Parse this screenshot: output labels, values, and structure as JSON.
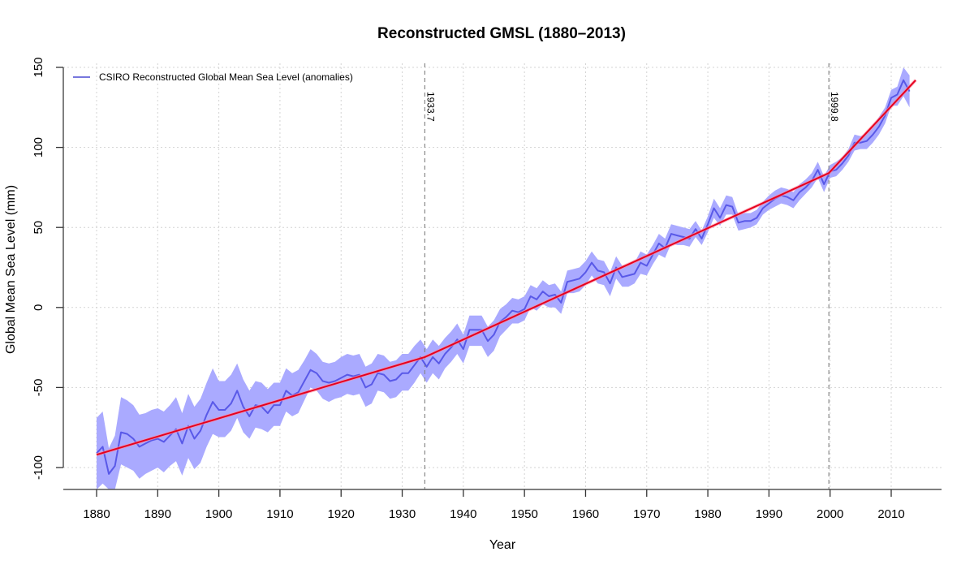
{
  "chart_data": {
    "type": "line",
    "title": "Reconstructed GMSL (1880–2013)",
    "xlabel": "Year",
    "ylabel": "Global Mean Sea Level (mm)",
    "xlim": [
      1874,
      2018
    ],
    "ylim": [
      -114,
      150
    ],
    "x_ticks": [
      1880,
      1890,
      1900,
      1910,
      1920,
      1930,
      1940,
      1950,
      1960,
      1970,
      1980,
      1990,
      2000,
      2010
    ],
    "y_ticks": [
      -100,
      -50,
      0,
      50,
      100,
      150
    ],
    "grid": true,
    "legend": {
      "position": "top-left",
      "entries": [
        "CSIRO Reconstructed Global Mean Sea Level (anomalies)"
      ]
    },
    "colors": {
      "series": "#5050e6",
      "band": "#aaaaff",
      "fit": "#e6001e",
      "vline": "#999999"
    },
    "series": [
      {
        "name": "CSIRO Reconstructed Global Mean Sea Level (anomalies)",
        "x": [
          1880,
          1881,
          1882,
          1883,
          1884,
          1885,
          1886,
          1887,
          1888,
          1889,
          1890,
          1891,
          1892,
          1893,
          1894,
          1895,
          1896,
          1897,
          1898,
          1899,
          1900,
          1901,
          1902,
          1903,
          1904,
          1905,
          1906,
          1907,
          1908,
          1909,
          1910,
          1911,
          1912,
          1913,
          1914,
          1915,
          1916,
          1917,
          1918,
          1919,
          1920,
          1921,
          1922,
          1923,
          1924,
          1925,
          1926,
          1927,
          1928,
          1929,
          1930,
          1931,
          1932,
          1933,
          1934,
          1935,
          1936,
          1937,
          1938,
          1939,
          1940,
          1941,
          1942,
          1943,
          1944,
          1945,
          1946,
          1947,
          1948,
          1949,
          1950,
          1951,
          1952,
          1953,
          1954,
          1955,
          1956,
          1957,
          1958,
          1959,
          1960,
          1961,
          1962,
          1963,
          1964,
          1965,
          1966,
          1967,
          1968,
          1969,
          1970,
          1971,
          1972,
          1973,
          1974,
          1975,
          1976,
          1977,
          1978,
          1979,
          1980,
          1981,
          1982,
          1983,
          1984,
          1985,
          1986,
          1987,
          1988,
          1989,
          1990,
          1991,
          1992,
          1993,
          1994,
          1995,
          1996,
          1997,
          1998,
          1999,
          2000,
          2001,
          2002,
          2003,
          2004,
          2005,
          2006,
          2007,
          2008,
          2009,
          2010,
          2011,
          2012,
          2013
        ],
        "y": [
          -91,
          -87,
          -104,
          -99,
          -78,
          -79,
          -82,
          -87,
          -85,
          -83,
          -82,
          -84,
          -80,
          -76,
          -85,
          -74,
          -82,
          -77,
          -67,
          -59,
          -64,
          -64,
          -60,
          -52,
          -62,
          -68,
          -61,
          -62,
          -66,
          -61,
          -61,
          -52,
          -55,
          -53,
          -46,
          -39,
          -41,
          -46,
          -47,
          -46,
          -44,
          -42,
          -43,
          -42,
          -50,
          -48,
          -41,
          -42,
          -46,
          -45,
          -41,
          -41,
          -36,
          -31,
          -37,
          -31,
          -35,
          -29,
          -25,
          -20,
          -26,
          -14,
          -14,
          -14,
          -21,
          -17,
          -9,
          -6,
          -2,
          -3,
          -1,
          7,
          5,
          10,
          7,
          8,
          3,
          16,
          17,
          18,
          22,
          28,
          23,
          22,
          15,
          25,
          19,
          20,
          21,
          28,
          26,
          33,
          40,
          37,
          46,
          45,
          44,
          43,
          49,
          43,
          52,
          62,
          56,
          64,
          63,
          53,
          54,
          54,
          56,
          62,
          65,
          68,
          70,
          69,
          67,
          72,
          75,
          79,
          86,
          77,
          85,
          86,
          90,
          95,
          103,
          103,
          104,
          108,
          113,
          120,
          131,
          133,
          142,
          135
        ]
      },
      {
        "name": "Uncertainty band",
        "lower": [
          -115,
          -110,
          -120,
          -115,
          -98,
          -100,
          -102,
          -107,
          -104,
          -102,
          -100,
          -103,
          -99,
          -96,
          -105,
          -94,
          -101,
          -97,
          -87,
          -79,
          -81,
          -81,
          -77,
          -69,
          -78,
          -82,
          -75,
          -76,
          -78,
          -74,
          -74,
          -65,
          -68,
          -66,
          -58,
          -50,
          -52,
          -57,
          -59,
          -57,
          -56,
          -54,
          -55,
          -54,
          -62,
          -60,
          -52,
          -53,
          -57,
          -56,
          -52,
          -52,
          -47,
          -41,
          -47,
          -41,
          -45,
          -38,
          -34,
          -29,
          -35,
          -24,
          -24,
          -24,
          -31,
          -27,
          -18,
          -14,
          -10,
          -10,
          -8,
          0,
          -2,
          2,
          0,
          0,
          -4,
          9,
          9,
          10,
          14,
          20,
          15,
          14,
          7,
          18,
          13,
          13,
          15,
          21,
          20,
          27,
          33,
          31,
          40,
          39,
          39,
          38,
          44,
          39,
          47,
          56,
          51,
          58,
          58,
          48,
          49,
          50,
          52,
          58,
          61,
          63,
          65,
          64,
          62,
          67,
          71,
          75,
          81,
          72,
          81,
          82,
          86,
          91,
          98,
          99,
          99,
          103,
          108,
          115,
          126,
          126,
          132,
          125
        ],
        "upper": [
          -69,
          -65,
          -88,
          -80,
          -56,
          -58,
          -61,
          -67,
          -66,
          -64,
          -63,
          -65,
          -61,
          -56,
          -66,
          -54,
          -62,
          -57,
          -47,
          -38,
          -46,
          -46,
          -42,
          -35,
          -45,
          -52,
          -46,
          -47,
          -51,
          -47,
          -47,
          -38,
          -41,
          -39,
          -33,
          -26,
          -29,
          -34,
          -35,
          -34,
          -31,
          -29,
          -30,
          -29,
          -37,
          -35,
          -29,
          -30,
          -34,
          -33,
          -29,
          -29,
          -24,
          -20,
          -26,
          -20,
          -24,
          -19,
          -15,
          -10,
          -17,
          -5,
          -5,
          -5,
          -12,
          -8,
          -1,
          2,
          6,
          5,
          7,
          14,
          12,
          17,
          14,
          15,
          10,
          23,
          24,
          25,
          29,
          35,
          30,
          29,
          22,
          32,
          26,
          27,
          28,
          35,
          33,
          39,
          46,
          43,
          52,
          51,
          50,
          49,
          54,
          48,
          57,
          68,
          62,
          70,
          69,
          58,
          59,
          59,
          61,
          66,
          70,
          73,
          75,
          74,
          72,
          77,
          80,
          84,
          91,
          82,
          89,
          91,
          94,
          99,
          108,
          107,
          109,
          113,
          119,
          125,
          136,
          138,
          150,
          145
        ]
      }
    ],
    "fit": {
      "name": "Piecewise linear fit",
      "x": [
        1880,
        1933.7,
        1999.8,
        2014
      ],
      "y": [
        -92,
        -31,
        84,
        142
      ]
    },
    "vlines": [
      {
        "x": 1933.7,
        "label": "1933.7"
      },
      {
        "x": 1999.8,
        "label": "1999.8"
      }
    ]
  }
}
